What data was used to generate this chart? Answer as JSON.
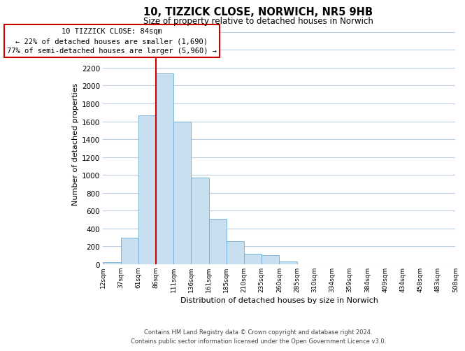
{
  "title": "10, TIZZICK CLOSE, NORWICH, NR5 9HB",
  "subtitle": "Size of property relative to detached houses in Norwich",
  "xlabel": "Distribution of detached houses by size in Norwich",
  "ylabel": "Number of detached properties",
  "bin_labels": [
    "12sqm",
    "37sqm",
    "61sqm",
    "86sqm",
    "111sqm",
    "136sqm",
    "161sqm",
    "185sqm",
    "210sqm",
    "235sqm",
    "260sqm",
    "285sqm",
    "310sqm",
    "334sqm",
    "359sqm",
    "384sqm",
    "409sqm",
    "434sqm",
    "458sqm",
    "483sqm",
    "508sqm"
  ],
  "bar_heights": [
    20,
    300,
    1670,
    2140,
    1600,
    970,
    510,
    255,
    120,
    100,
    30,
    0,
    0,
    0,
    0,
    0,
    0,
    0,
    0,
    0,
    20
  ],
  "bar_color": "#c8dff0",
  "bar_edge_color": "#6aaed6",
  "marker_bin_index": 3,
  "marker_color": "#cc0000",
  "annotation_title": "10 TIZZICK CLOSE: 84sqm",
  "annotation_line1": "← 22% of detached houses are smaller (1,690)",
  "annotation_line2": "77% of semi-detached houses are larger (5,960) →",
  "annotation_box_color": "#ffffff",
  "annotation_box_edge": "#cc0000",
  "footer_line1": "Contains HM Land Registry data © Crown copyright and database right 2024.",
  "footer_line2": "Contains public sector information licensed under the Open Government Licence v3.0.",
  "ylim": [
    0,
    2700
  ],
  "yticks": [
    0,
    200,
    400,
    600,
    800,
    1000,
    1200,
    1400,
    1600,
    1800,
    2000,
    2200,
    2400,
    2600
  ],
  "bg_color": "#ffffff",
  "grid_color": "#c0cfe0"
}
